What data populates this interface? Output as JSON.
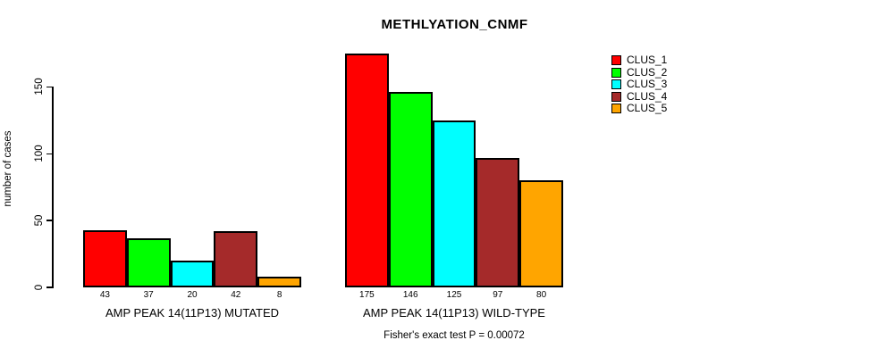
{
  "chart_data": {
    "type": "bar",
    "title": "METHLYATION_CNMF",
    "ylabel": "number of cases",
    "xlabel": "",
    "ylim": [
      0,
      175
    ],
    "yticks": [
      0,
      50,
      100,
      150
    ],
    "grid": false,
    "legend_position": "right-outside-top",
    "bar_border_color": "#000000",
    "series": [
      {
        "name": "CLUS_1",
        "color": "#FF0000"
      },
      {
        "name": "CLUS_2",
        "color": "#00FF00"
      },
      {
        "name": "CLUS_3",
        "color": "#00FFFF"
      },
      {
        "name": "CLUS_4",
        "color": "#A52A2A"
      },
      {
        "name": "CLUS_5",
        "color": "#FFA500"
      }
    ],
    "groups": [
      {
        "label": "AMP PEAK 14(11P13) MUTATED",
        "values": [
          43,
          37,
          20,
          42,
          8
        ],
        "value_labels": [
          "43",
          "37",
          "20",
          "42",
          "8"
        ]
      },
      {
        "label": "AMP PEAK 14(11P13) WILD-TYPE",
        "values": [
          175,
          146,
          125,
          97,
          80
        ],
        "value_labels": [
          "175",
          "146",
          "125",
          "97",
          "80"
        ]
      }
    ],
    "caption": "Fisher's exact test P = 0.00072"
  }
}
